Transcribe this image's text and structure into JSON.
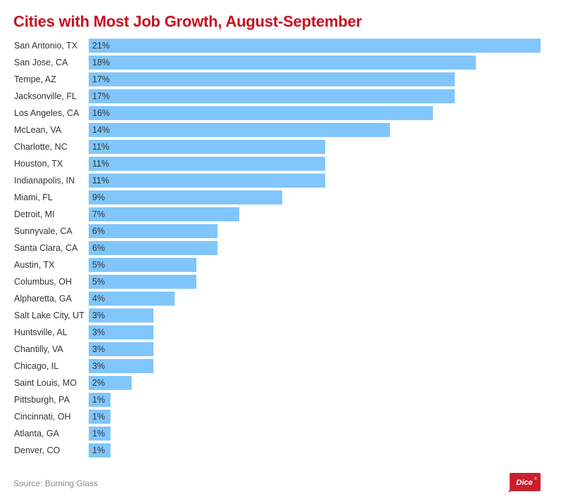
{
  "chart_data": {
    "type": "bar",
    "orientation": "horizontal",
    "title": "Cities with Most Job Growth, August-September",
    "xlabel": "",
    "ylabel": "",
    "value_format": "percent",
    "xlim": [
      0,
      21
    ],
    "grid": false,
    "legend": "none",
    "categories": [
      "San Antonio, TX",
      "San Jose, CA",
      "Tempe, AZ",
      "Jacksonville, FL",
      "Los Angeles, CA",
      "McLean, VA",
      "Charlotte, NC",
      "Houston, TX",
      "Indianapolis, IN",
      "Miami, FL",
      "Detroit, MI",
      "Sunnyvale, CA",
      "Santa Clara, CA",
      "Austin, TX",
      "Columbus, OH",
      "Alpharetta, GA",
      "Salt Lake City, UT",
      "Huntsville, AL",
      "Chantilly, VA",
      "Chicago, IL",
      "Saint Louis, MO",
      "Pittsburgh, PA",
      "Cincinnati, OH",
      "Atlanta, GA",
      "Denver, CO"
    ],
    "values": [
      21,
      18,
      17,
      17,
      16,
      14,
      11,
      11,
      11,
      9,
      7,
      6,
      6,
      5,
      5,
      4,
      3,
      3,
      3,
      3,
      2,
      1,
      1,
      1,
      1
    ],
    "data_labels": [
      "21%",
      "18%",
      "17%",
      "17%",
      "16%",
      "14%",
      "11%",
      "11%",
      "11%",
      "9%",
      "7%",
      "6%",
      "6%",
      "5%",
      "5%",
      "4%",
      "3%",
      "3%",
      "3%",
      "3%",
      "2%",
      "1%",
      "1%",
      "1%",
      "1%"
    ],
    "colors": {
      "bar": "#80c6fc",
      "title": "#c8101e",
      "text": "#333333"
    }
  },
  "footer": {
    "source": "Source: Burning Glass",
    "logo_text": "Dice",
    "logo_mark": "®",
    "logo_color": "#cc1f2d"
  }
}
